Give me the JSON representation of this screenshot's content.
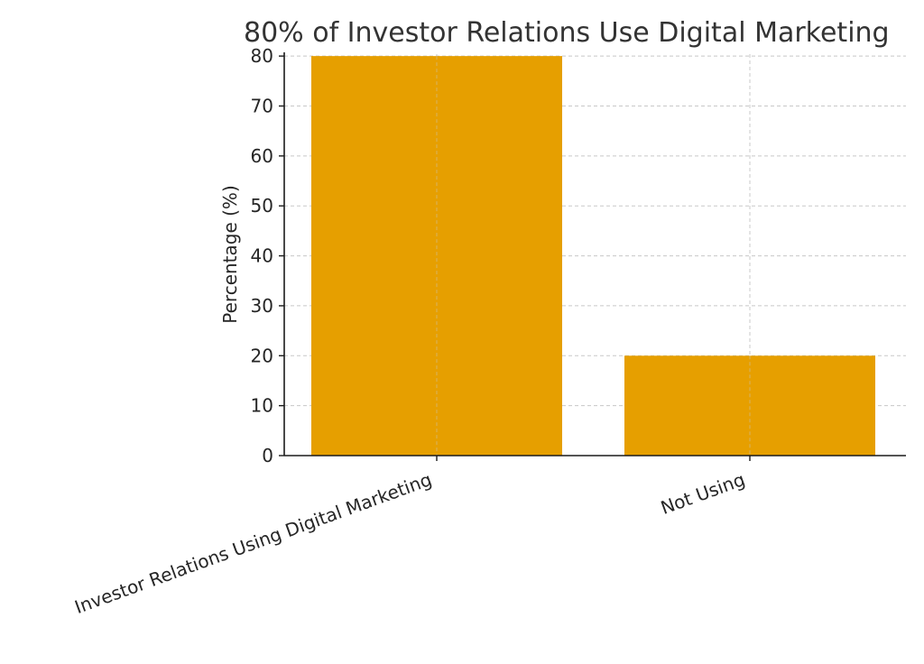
{
  "chart_data": {
    "type": "bar",
    "title": "80% of Investor Relations Use Digital Marketing",
    "xlabel": "",
    "ylabel": "Percentage (%)",
    "categories": [
      "Investor Relations Using Digital Marketing",
      "Not Using"
    ],
    "values": [
      80,
      20
    ],
    "ylim": [
      0,
      84
    ],
    "yticks": [
      0,
      10,
      20,
      30,
      40,
      50,
      60,
      70,
      80
    ],
    "grid": true,
    "bar_color": "#E69F00",
    "x_tick_rotation_deg": -20
  }
}
